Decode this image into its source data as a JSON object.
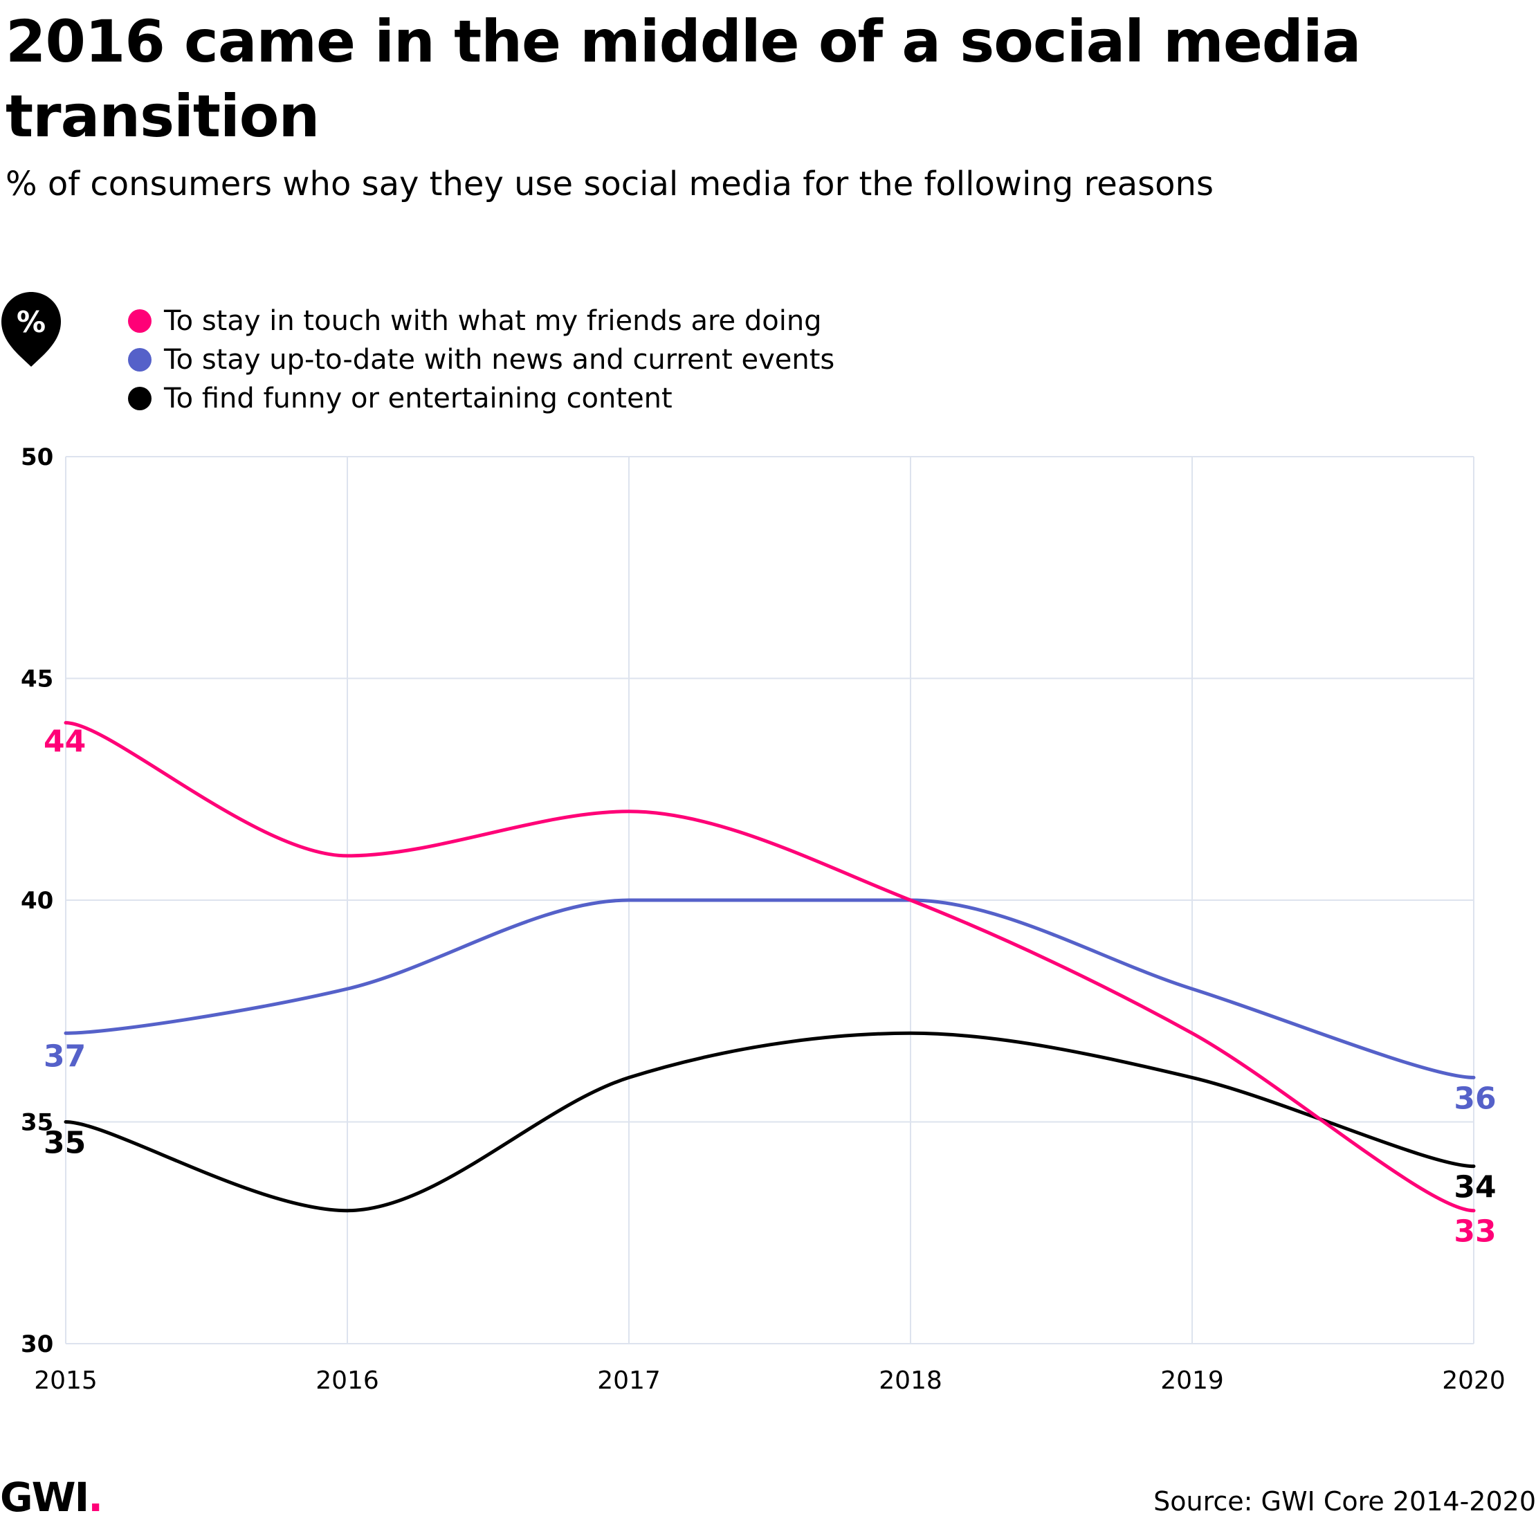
{
  "header": {
    "title": "2016 came in the middle of a social media transition",
    "subtitle": "% of consumers who say they use social media for the following reasons"
  },
  "badge": {
    "symbol": "%",
    "icon": "percent-pin-icon"
  },
  "footer": {
    "logo_text": "GWI",
    "logo_dot": ".",
    "source": "Source: GWI Core 2014-2020"
  },
  "colors": {
    "pink": "#ff0077",
    "blue": "#5561c9",
    "black": "#000000",
    "grid": "#dde3ee"
  },
  "chart_data": {
    "type": "line",
    "title": "2016 came in the middle of a social media transition",
    "subtitle": "% of consumers who say they use social media for the following reasons",
    "xlabel": "",
    "ylabel": "",
    "x": [
      "2015",
      "2016",
      "2017",
      "2018",
      "2019",
      "2020"
    ],
    "ylim": [
      30,
      50
    ],
    "yticks": [
      30,
      35,
      40,
      45,
      50
    ],
    "grid": true,
    "legend": "top-left",
    "series": [
      {
        "name": "To stay in touch with what my friends are doing",
        "color": "#ff0077",
        "values": [
          44,
          41,
          42,
          40,
          37,
          33
        ],
        "labels": [
          "44",
          "33"
        ]
      },
      {
        "name": "To stay up-to-date with news and current events",
        "color": "#5561c9",
        "values": [
          37,
          38,
          40,
          40,
          38,
          36
        ],
        "labels": [
          "37",
          "36"
        ]
      },
      {
        "name": "To find funny or entertaining content",
        "color": "#000000",
        "values": [
          35,
          33,
          36,
          37,
          36,
          34
        ],
        "labels": [
          "35",
          "34"
        ]
      }
    ]
  }
}
